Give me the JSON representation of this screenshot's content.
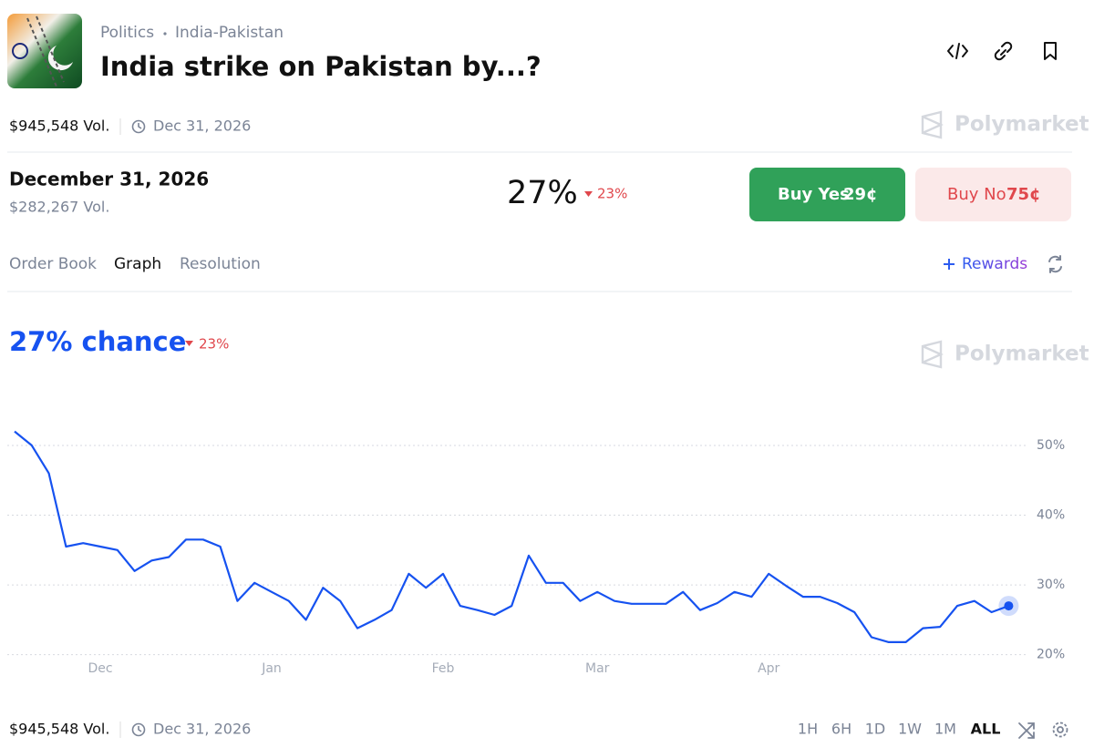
{
  "header": {
    "category": "Politics",
    "subcategory": "India-Pakistan",
    "title": "India strike on Pakistan by...?",
    "volume": "$945,548 Vol.",
    "end_date": "Dec 31, 2026",
    "brand": "Polymarket"
  },
  "market": {
    "name": "December 31, 2026",
    "volume": "$282,267 Vol.",
    "chance": "27%",
    "change": "23%",
    "buy_yes": {
      "label": "Buy Yes",
      "price": "29¢"
    },
    "buy_no": {
      "label": "Buy No",
      "price": "75¢"
    }
  },
  "tabs": [
    "Order Book",
    "Graph",
    "Resolution"
  ],
  "rewards": "Rewards",
  "chart_header": {
    "chance": "27% chance",
    "change": "23%",
    "brand": "Polymarket"
  },
  "chart_data": {
    "type": "line",
    "x": [
      null,
      null,
      null,
      null,
      null,
      "Dec",
      null,
      null,
      null,
      null,
      null,
      null,
      null,
      null,
      null,
      "Jan",
      null,
      null,
      null,
      null,
      null,
      null,
      null,
      null,
      null,
      "Feb",
      null,
      null,
      null,
      null,
      null,
      null,
      null,
      null,
      "Mar",
      null,
      null,
      null,
      null,
      null,
      null,
      null,
      null,
      null,
      "Apr",
      null,
      null,
      null,
      null,
      null,
      null,
      null,
      null,
      null,
      null,
      null,
      null,
      null,
      null
    ],
    "series": [
      {
        "name": "Yes",
        "color": "#1652f0",
        "values": [
          52,
          50,
          46,
          35.5,
          36,
          35.5,
          35,
          32,
          33.5,
          34,
          36.5,
          36.5,
          35.5,
          27.7,
          30.3,
          29,
          27.7,
          25,
          29.6,
          27.7,
          23.8,
          25,
          26.4,
          31.6,
          29.6,
          31.6,
          27,
          26.4,
          25.7,
          27,
          34.2,
          30.3,
          30.3,
          27.7,
          29,
          27.7,
          27.3,
          27.3,
          27.3,
          29,
          26.4,
          27.4,
          29,
          28.3,
          31.6,
          29.9,
          28.3,
          28.3,
          27.4,
          26.1,
          22.5,
          21.8,
          21.8,
          23.8,
          24,
          27,
          27.7,
          26.1,
          27
        ]
      }
    ],
    "ylim": [
      18,
      56
    ],
    "yticks": [
      {
        "value": 20,
        "label": "20%"
      },
      {
        "value": 30,
        "label": "30%"
      },
      {
        "value": 40,
        "label": "40%"
      },
      {
        "value": 50,
        "label": "50%"
      }
    ],
    "grid": true
  },
  "footer": {
    "volume": "$945,548 Vol.",
    "end_date": "Dec 31, 2026",
    "ranges": [
      "1H",
      "6H",
      "1D",
      "1W",
      "1M",
      "ALL"
    ]
  }
}
